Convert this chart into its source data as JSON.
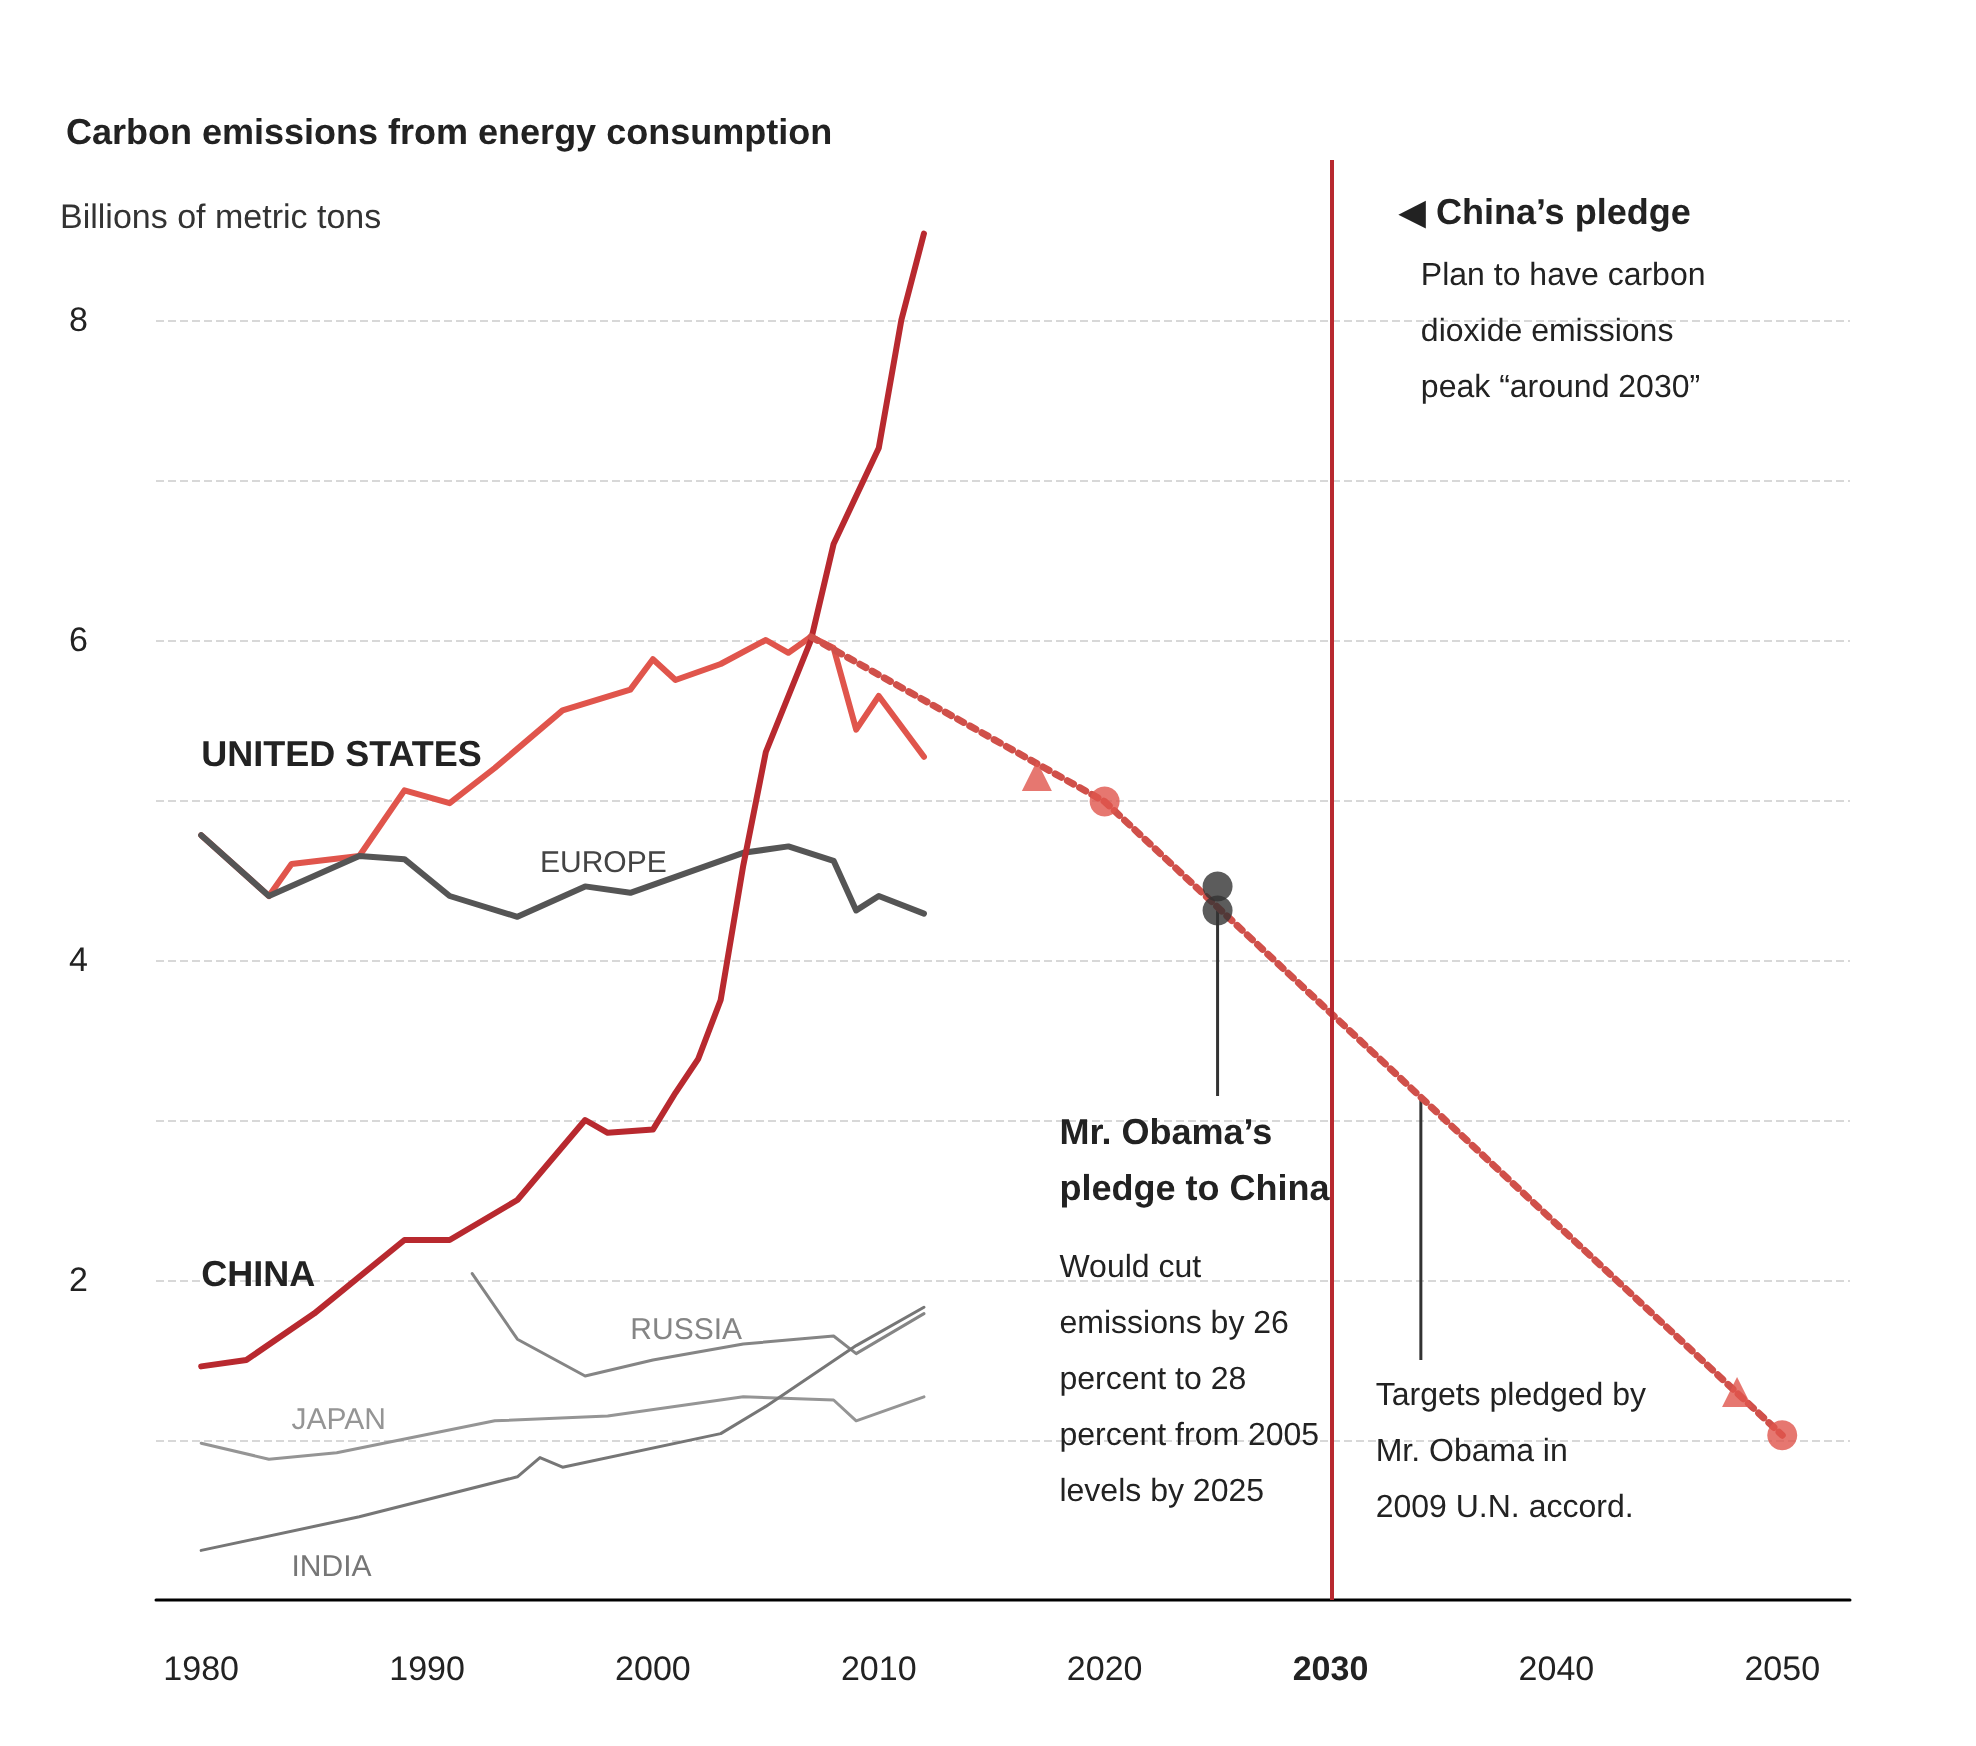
{
  "chart_data": {
    "type": "line",
    "title": "Carbon emissions from energy consumption",
    "ylabel": "Billions of metric tons",
    "xlim": [
      1978,
      2053
    ],
    "xticks": [
      1980,
      1990,
      2000,
      2010,
      2020,
      2030,
      2040,
      2050
    ],
    "ylim": [
      0,
      9
    ],
    "yticks": [
      {
        "value": 1,
        "label": null
      },
      2,
      {
        "value": 3,
        "label": null
      },
      4,
      {
        "value": 5,
        "label": null
      },
      6,
      {
        "value": 7,
        "label": null
      },
      8
    ],
    "grid": "y",
    "legend": false,
    "marker": "none",
    "line_style": "solid",
    "series": [
      {
        "name": "UNITED STATES",
        "color": "#e0554c",
        "x": [
          1980,
          1983,
          1984,
          1987,
          1989,
          1991,
          1993,
          1996,
          1999,
          2000,
          2001,
          2003,
          2005,
          2006,
          2007,
          2008,
          2009,
          2010,
          2012
        ],
        "values": [
          4.78,
          4.4,
          4.6,
          4.65,
          5.06,
          4.98,
          5.2,
          5.56,
          5.69,
          5.88,
          5.75,
          5.85,
          6.0,
          5.92,
          6.02,
          5.95,
          5.44,
          5.65,
          5.27
        ]
      },
      {
        "name": "EUROPE",
        "color": "#555555",
        "x": [
          1980,
          1983,
          1987,
          1989,
          1991,
          1994,
          1997,
          1999,
          2001,
          2004,
          2006,
          2008,
          2009,
          2010,
          2012
        ],
        "values": [
          4.78,
          4.4,
          4.65,
          4.63,
          4.4,
          4.27,
          4.46,
          4.42,
          4.52,
          4.67,
          4.71,
          4.62,
          4.31,
          4.4,
          4.29
        ]
      },
      {
        "name": "CHINA",
        "color": "#b8292f",
        "x": [
          1980,
          1982,
          1985,
          1989,
          1991,
          1994,
          1997,
          1998,
          2000,
          2001,
          2002,
          2003,
          2004,
          2005,
          2007,
          2008,
          2010,
          2011,
          2012
        ],
        "values": [
          1.46,
          1.5,
          1.79,
          2.25,
          2.25,
          2.5,
          3.0,
          2.92,
          2.94,
          3.17,
          3.38,
          3.75,
          4.59,
          5.3,
          6.0,
          6.6,
          7.2,
          8.0,
          8.54
        ]
      },
      {
        "name": "RUSSIA",
        "color": "#858585",
        "x": [
          1992,
          1994,
          1997,
          2000,
          2004,
          2008,
          2009,
          2012
        ],
        "values": [
          2.04,
          1.63,
          1.4,
          1.5,
          1.6,
          1.65,
          1.54,
          1.79
        ]
      },
      {
        "name": "JAPAN",
        "color": "#959595",
        "x": [
          1980,
          1983,
          1986,
          1993,
          1998,
          2004,
          2008,
          2009,
          2012
        ],
        "values": [
          0.98,
          0.88,
          0.92,
          1.12,
          1.15,
          1.27,
          1.25,
          1.12,
          1.27
        ]
      },
      {
        "name": "INDIA",
        "color": "#767676",
        "x": [
          1980,
          1987,
          1994,
          1995,
          1996,
          2003,
          2005,
          2009,
          2012
        ],
        "values": [
          0.31,
          0.52,
          0.77,
          0.89,
          0.83,
          1.04,
          1.21,
          1.59,
          1.83
        ]
      },
      {
        "color": "#d0504a",
        "line_style": "dotted",
        "x": [
          2007,
          2020,
          2050
        ],
        "values": [
          6.02,
          4.99,
          1.03
        ]
      },
      {
        "type": "scatter",
        "marker": "triangle",
        "color": "#e0554c",
        "x": [
          2017,
          2048
        ],
        "values": [
          5.15,
          1.3
        ]
      },
      {
        "type": "scatter",
        "marker": "circle",
        "color": "#e0554c",
        "x": [
          2020,
          2050
        ],
        "values": [
          4.99,
          1.03
        ]
      },
      {
        "type": "scatter",
        "marker": "circle",
        "color": "#333333",
        "x": [
          2025,
          2025
        ],
        "values": [
          4.46,
          4.31
        ]
      }
    ],
    "ref_lines": [
      {
        "axis": "x",
        "value": 2030,
        "color": "#b8292f"
      }
    ],
    "annotations": [
      "◀ China’s pledge",
      "Plan to have carbon\ndioxide emissions\npeak “around 2030”",
      {
        "text": "Mr. Obama’s\npledge to China",
        "x": 2025,
        "y": 4.31
      },
      "Would cut\nemissions by 26\npercent to 28\npercent from 2005\nlevels by 2025",
      {
        "text": "Targets pledged by\nMr. Obama in\n2009 U.N. accord.",
        "x": 2034,
        "y": 3.13
      }
    ]
  }
}
